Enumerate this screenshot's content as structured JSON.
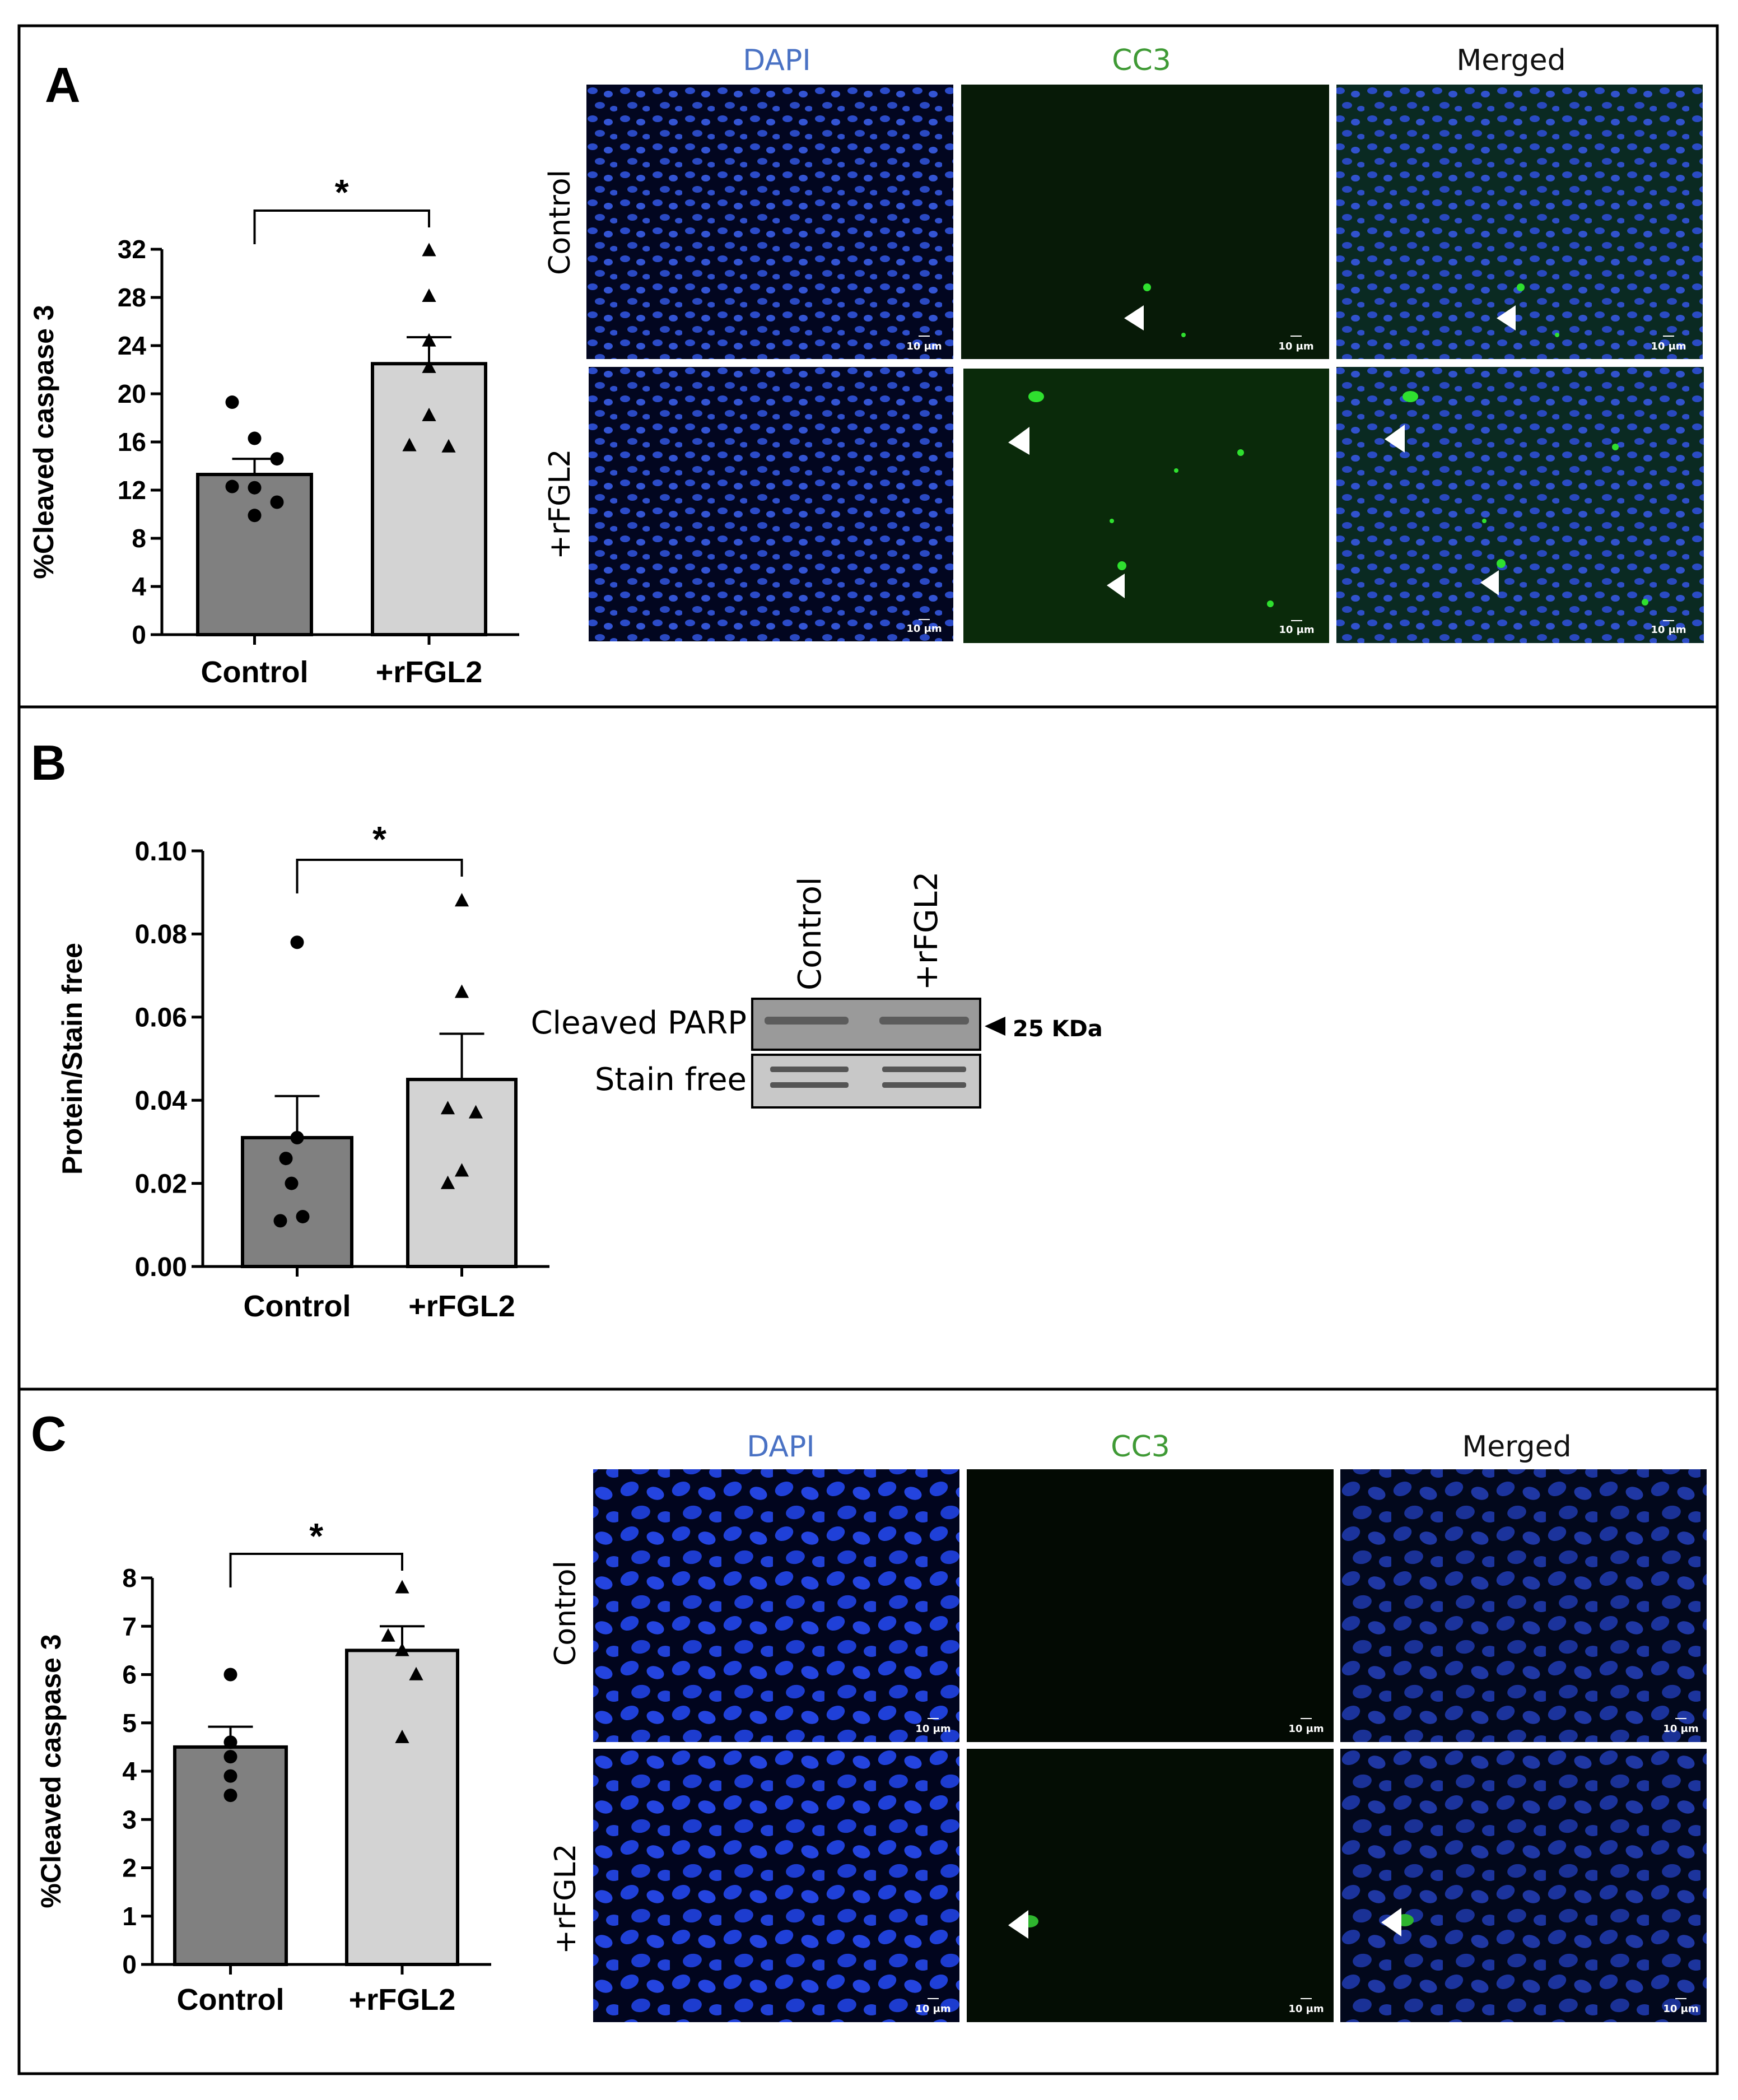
{
  "figure": {
    "panels": {
      "A": {
        "letter": "A"
      },
      "B": {
        "letter": "B"
      },
      "C": {
        "letter": "C"
      }
    },
    "micrographs": {
      "A": {
        "columns": [
          "DAPI",
          "CC3",
          "Merged"
        ],
        "rows": [
          "Control",
          "+rFGL2"
        ],
        "scale_bar": "10 μm",
        "colors": {
          "dapi_label": "#4a72c4",
          "cc3_label": "#3f9a35",
          "merged_label": "#111111",
          "nucleus": "#2f50d6",
          "cc3": "#2fe02f"
        }
      },
      "C": {
        "columns": [
          "DAPI",
          "CC3",
          "Merged"
        ],
        "rows": [
          "Control",
          "+rFGL2"
        ],
        "scale_bar": "10 μm",
        "colors": {
          "dapi_label": "#4a72c4",
          "cc3_label": "#3f9a35",
          "merged_label": "#111111",
          "nucleus": "#2f50d6",
          "cc3": "#2fe02f"
        }
      }
    },
    "western_blot": {
      "lanes": [
        "Control",
        "+rFGL2"
      ],
      "bands": [
        "Cleaved PARP",
        "Stain free"
      ],
      "marker": "25 KDa"
    }
  },
  "chart_data": [
    {
      "panel": "A",
      "type": "bar",
      "categories": [
        "Control",
        "+rFGL2"
      ],
      "values": [
        13.3,
        22.5
      ],
      "errors": [
        1.3,
        2.2
      ],
      "points": [
        [
          19.3,
          16.3,
          14.6,
          12.3,
          12.2,
          11.0,
          9.9
        ],
        [
          31.9,
          28.1,
          24.4,
          22.2,
          18.2,
          15.7,
          15.6
        ]
      ],
      "markers": [
        "circle",
        "triangle"
      ],
      "bar_colors": [
        "#808080",
        "#d3d3d3"
      ],
      "xlabel": "",
      "ylabel": "%Cleaved caspase 3",
      "ylim": [
        0,
        32
      ],
      "yticks": [
        "0",
        "4",
        "8",
        "12",
        "16",
        "20",
        "24",
        "28",
        "32"
      ],
      "significance": "*"
    },
    {
      "panel": "B",
      "type": "bar",
      "categories": [
        "Control",
        "+rFGL2"
      ],
      "values": [
        0.031,
        0.045
      ],
      "errors": [
        0.01,
        0.011
      ],
      "points": [
        [
          0.078,
          0.031,
          0.026,
          0.02,
          0.012,
          0.011
        ],
        [
          0.088,
          0.066,
          0.038,
          0.037,
          0.023,
          0.02
        ]
      ],
      "markers": [
        "circle",
        "triangle"
      ],
      "bar_colors": [
        "#808080",
        "#d3d3d3"
      ],
      "xlabel": "",
      "ylabel": "Protein/Stain free",
      "ylim": [
        0,
        0.1
      ],
      "yticks": [
        "0.00",
        "0.02",
        "0.04",
        "0.06",
        "0.08",
        "0.10"
      ],
      "significance": "*"
    },
    {
      "panel": "C",
      "type": "bar",
      "categories": [
        "Control",
        "+rFGL2"
      ],
      "values": [
        4.5,
        6.5
      ],
      "errors": [
        0.42,
        0.5
      ],
      "points": [
        [
          6.0,
          4.6,
          4.3,
          3.9,
          3.5
        ],
        [
          7.8,
          6.8,
          6.5,
          6.0,
          4.7
        ]
      ],
      "markers": [
        "circle",
        "triangle"
      ],
      "bar_colors": [
        "#808080",
        "#d3d3d3"
      ],
      "xlabel": "",
      "ylabel": "%Cleaved caspase 3",
      "ylim": [
        0,
        8
      ],
      "yticks": [
        "0",
        "1",
        "2",
        "3",
        "4",
        "5",
        "6",
        "7",
        "8"
      ],
      "significance": "*"
    }
  ]
}
